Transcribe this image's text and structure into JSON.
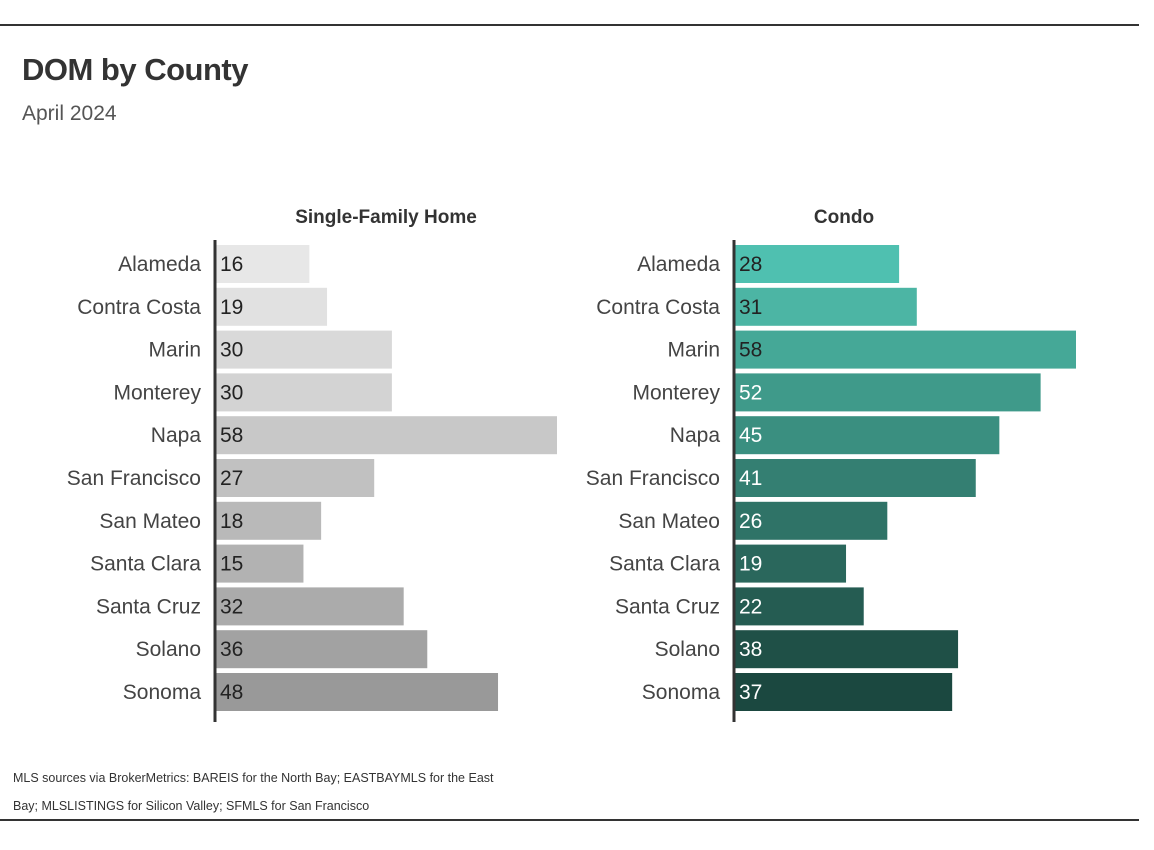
{
  "title": "DOM by County",
  "subtitle": "April 2024",
  "footer": "MLS sources via BrokerMetrics: BAREIS for the North Bay; EASTBAYMLS for the East Bay; MLSLISTINGS for Silicon Valley; SFMLS for San Francisco",
  "chart_data": [
    {
      "type": "bar",
      "orientation": "horizontal",
      "title": "Single-Family Home",
      "categories": [
        "Alameda",
        "Contra Costa",
        "Marin",
        "Monterey",
        "Napa",
        "San Francisco",
        "San Mateo",
        "Santa Clara",
        "Santa Cruz",
        "Solano",
        "Sonoma"
      ],
      "values": [
        16,
        19,
        30,
        30,
        58,
        27,
        18,
        15,
        32,
        36,
        48
      ],
      "xlim": [
        0,
        58
      ],
      "colors": [
        "#e7e7e7",
        "#e1e1e1",
        "#d9d9d9",
        "#d3d3d3",
        "#c8c8c8",
        "#c1c1c1",
        "#b9b9b9",
        "#b2b2b2",
        "#ababab",
        "#a2a2a2",
        "#999999"
      ],
      "label_colors": [
        "#222222",
        "#222222",
        "#222222",
        "#222222",
        "#222222",
        "#222222",
        "#222222",
        "#222222",
        "#222222",
        "#222222",
        "#222222"
      ]
    },
    {
      "type": "bar",
      "orientation": "horizontal",
      "title": "Condo",
      "categories": [
        "Alameda",
        "Contra Costa",
        "Marin",
        "Monterey",
        "Napa",
        "San Francisco",
        "San Mateo",
        "Santa Clara",
        "Santa Cruz",
        "Solano",
        "Sonoma"
      ],
      "values": [
        28,
        31,
        58,
        52,
        45,
        41,
        26,
        19,
        22,
        38,
        37
      ],
      "xlim": [
        0,
        58
      ],
      "colors": [
        "#4fc0b0",
        "#4cb5a4",
        "#45a897",
        "#3f9a8a",
        "#3a8f80",
        "#347f72",
        "#2f7367",
        "#2a675c",
        "#255c52",
        "#1f5047",
        "#1b4840"
      ],
      "label_colors": [
        "#222222",
        "#222222",
        "#222222",
        "#ffffff",
        "#ffffff",
        "#ffffff",
        "#ffffff",
        "#ffffff",
        "#ffffff",
        "#ffffff",
        "#ffffff"
      ]
    }
  ]
}
